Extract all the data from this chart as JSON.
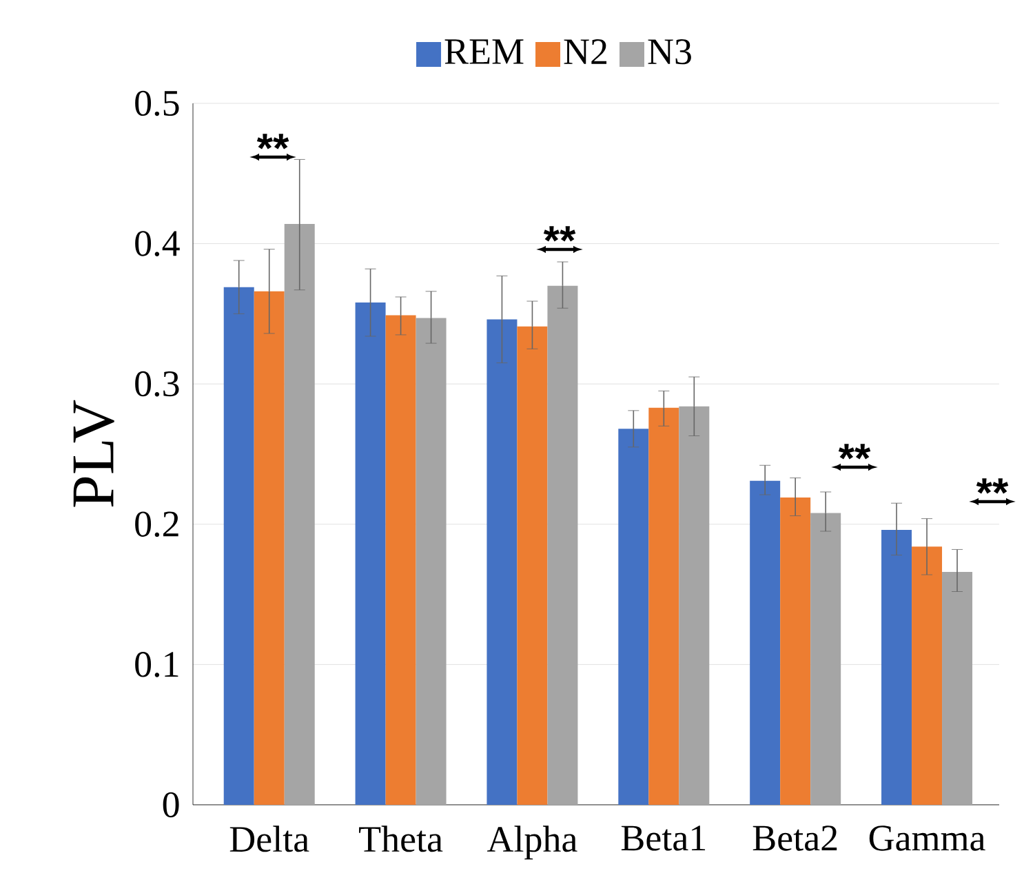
{
  "chart_data": {
    "type": "bar",
    "ylabel": "PLV",
    "categories": [
      "Delta",
      "Theta",
      "Alpha",
      "Beta1",
      "Beta2",
      "Gamma"
    ],
    "series": [
      {
        "name": "REM",
        "color": "#4472c4",
        "values": [
          0.369,
          0.358,
          0.346,
          0.268,
          0.231,
          0.196
        ],
        "errors": [
          [
            0.35,
            0.388
          ],
          [
            0.334,
            0.382
          ],
          [
            0.315,
            0.377
          ],
          [
            0.255,
            0.281
          ],
          [
            0.221,
            0.242
          ],
          [
            0.178,
            0.215
          ]
        ]
      },
      {
        "name": "N2",
        "color": "#ed7d31",
        "values": [
          0.366,
          0.349,
          0.341,
          0.283,
          0.219,
          0.184
        ],
        "errors": [
          [
            0.336,
            0.396
          ],
          [
            0.335,
            0.362
          ],
          [
            0.325,
            0.359
          ],
          [
            0.27,
            0.295
          ],
          [
            0.206,
            0.233
          ],
          [
            0.164,
            0.204
          ]
        ]
      },
      {
        "name": "N3",
        "color": "#a5a5a5",
        "values": [
          0.414,
          0.347,
          0.37,
          0.284,
          0.208,
          0.166
        ],
        "errors": [
          [
            0.367,
            0.46
          ],
          [
            0.329,
            0.366
          ],
          [
            0.354,
            0.387
          ],
          [
            0.263,
            0.305
          ],
          [
            0.195,
            0.223
          ],
          [
            0.152,
            0.182
          ]
        ]
      }
    ],
    "ylim": [
      0,
      0.5
    ],
    "yticks": [
      0,
      0.1,
      0.2,
      0.3,
      0.4,
      0.5
    ],
    "grid": "y",
    "legend": "top",
    "annotations": [
      "**",
      "**",
      "**",
      "**"
    ]
  }
}
